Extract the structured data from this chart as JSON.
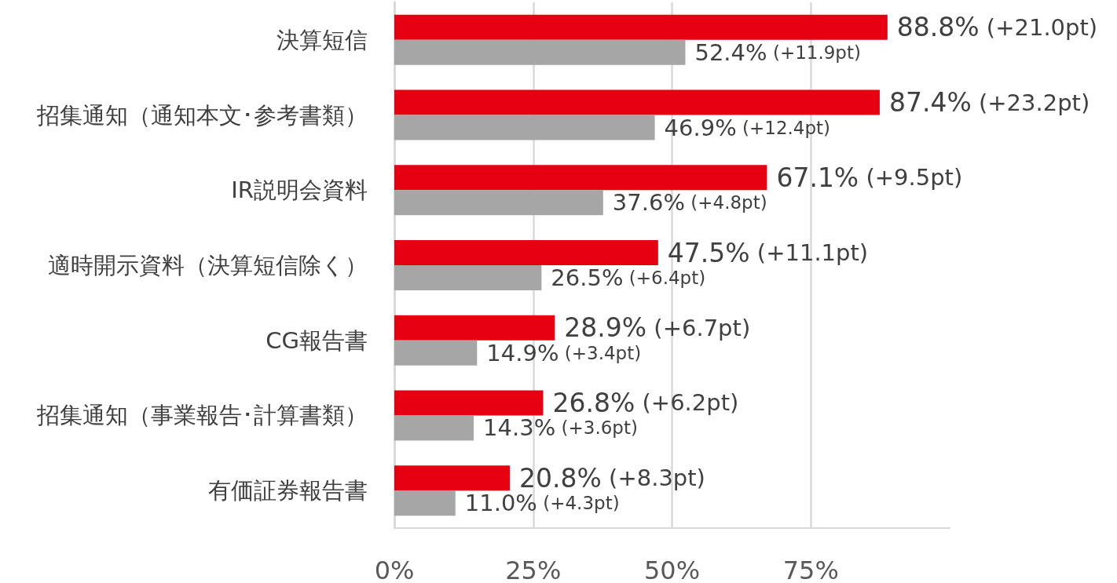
{
  "chart_data": {
    "type": "bar",
    "orientation": "horizontal",
    "categories": [
      "決算短信",
      "招集通知（通知本文･参考書類）",
      "IR説明会資料",
      "適時開示資料（決算短信除く）",
      "CG報告書",
      "招集通知（事業報告･計算書類）",
      "有価証券報告書"
    ],
    "series": [
      {
        "color": "#e60012",
        "values": [
          88.8,
          87.4,
          67.1,
          47.5,
          28.9,
          26.8,
          20.8
        ],
        "value_labels": [
          "88.8% (+21.0pt)",
          "87.4% (+23.2pt)",
          "67.1% (+9.5pt)",
          "47.5% (+11.1pt)",
          "28.9% (+6.7pt)",
          "26.8% (+6.2pt)",
          "20.8% (+8.3pt)"
        ]
      },
      {
        "color": "#a6a6a6",
        "values": [
          52.4,
          46.9,
          37.6,
          26.5,
          14.9,
          14.3,
          11.0
        ],
        "value_labels": [
          "52.4% (+11.9pt)",
          "46.9% (+12.4pt)",
          "37.6% (+4.8pt)",
          "26.5% (+6.4pt)",
          "14.9% (+3.4pt)",
          "14.3% (+3.6pt)",
          "11.0% (+4.3pt)"
        ]
      }
    ],
    "xlim": [
      0,
      100
    ],
    "xticks": [
      {
        "value": 0,
        "label": "0%"
      },
      {
        "value": 25,
        "label": "25%"
      },
      {
        "value": 50,
        "label": "50%"
      },
      {
        "value": 75,
        "label": "75%"
      }
    ],
    "grid": "x"
  }
}
